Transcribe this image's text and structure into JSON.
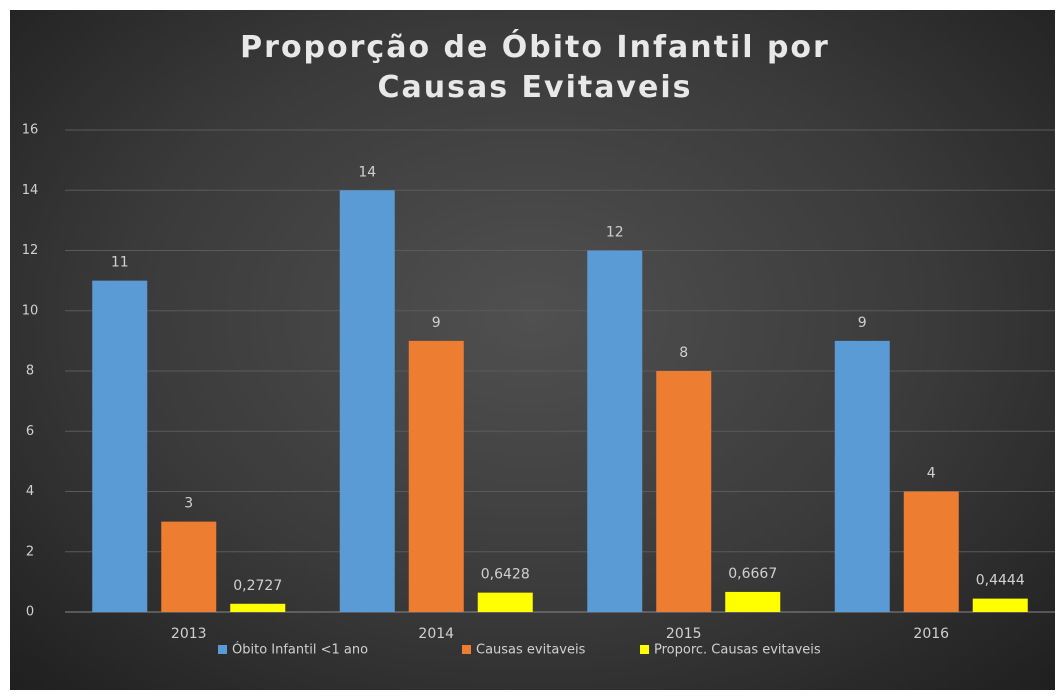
{
  "chart_data": {
    "type": "bar",
    "title": "Proporção de Óbito Infantil por Causas Evitaveis",
    "categories": [
      "2013",
      "2014",
      "2015",
      "2016"
    ],
    "series": [
      {
        "name": "Óbito Infantil <1 ano",
        "color": "#5b9bd5",
        "values": [
          11,
          14,
          12,
          9
        ]
      },
      {
        "name": "Causas evitaveis",
        "color": "#ed7d31",
        "values": [
          3,
          9,
          8,
          4
        ]
      },
      {
        "name": "Proporc. Causas evitaveis",
        "color": "#ffff00",
        "values": [
          0.2727,
          0.6428,
          0.6667,
          0.4444
        ],
        "value_labels": [
          "0,2727",
          "0,6428",
          "0,6667",
          "0,4444"
        ]
      }
    ],
    "ylim": [
      0,
      16
    ],
    "yticks": [
      0,
      2,
      4,
      6,
      8,
      10,
      12,
      14,
      16
    ],
    "grid": true,
    "legend": "bottom"
  }
}
